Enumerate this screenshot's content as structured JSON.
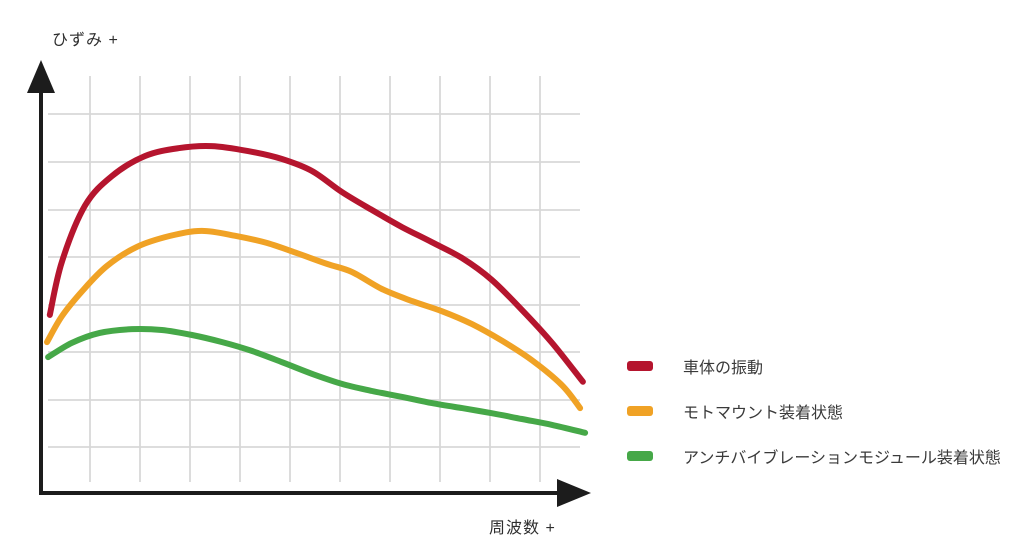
{
  "chart_data": {
    "type": "line",
    "title": "",
    "xlabel": "周波数 +",
    "ylabel": "ひずみ +",
    "grid": "on",
    "legend_position": "right",
    "axis_ticks": "none",
    "units_note": "axes are qualitative; point coordinates are percent of axis span (x = frequency 0-100, y = strain 0-100)",
    "colors": {
      "red": "#b5152e",
      "orange": "#f0a225",
      "green": "#46a848",
      "grid": "#d8d8d8",
      "axis": "#1c1c1c",
      "text": "#3a3a3a",
      "background": "#ffffff"
    },
    "series": [
      {
        "name": "車体の振動",
        "color": "#b5152e",
        "points": [
          [
            1.6,
            42.6
          ],
          [
            3.8,
            55.3
          ],
          [
            8.0,
            68.7
          ],
          [
            12.9,
            75.8
          ],
          [
            18.9,
            80.6
          ],
          [
            25.0,
            82.5
          ],
          [
            31.1,
            83.0
          ],
          [
            37.7,
            81.8
          ],
          [
            43.9,
            79.9
          ],
          [
            49.4,
            77.0
          ],
          [
            54.8,
            72.0
          ],
          [
            60.3,
            67.7
          ],
          [
            65.8,
            63.6
          ],
          [
            71.2,
            60.0
          ],
          [
            76.7,
            56.2
          ],
          [
            82.1,
            51.0
          ],
          [
            87.6,
            43.8
          ],
          [
            93.1,
            35.9
          ],
          [
            98.7,
            26.6
          ]
        ]
      },
      {
        "name": "モトマウント装着状態",
        "color": "#f0a225",
        "points": [
          [
            1.1,
            36.1
          ],
          [
            3.8,
            42.3
          ],
          [
            7.5,
            48.3
          ],
          [
            12.0,
            54.3
          ],
          [
            17.5,
            58.9
          ],
          [
            23.5,
            61.5
          ],
          [
            29.3,
            62.7
          ],
          [
            35.5,
            61.5
          ],
          [
            41.2,
            59.8
          ],
          [
            46.6,
            57.4
          ],
          [
            52.1,
            54.8
          ],
          [
            56.6,
            52.9
          ],
          [
            62.1,
            48.8
          ],
          [
            67.6,
            45.9
          ],
          [
            73.0,
            43.5
          ],
          [
            78.5,
            40.4
          ],
          [
            84.0,
            36.4
          ],
          [
            89.4,
            31.8
          ],
          [
            94.9,
            25.8
          ],
          [
            98.2,
            20.3
          ]
        ]
      },
      {
        "name": "アンチバイブレーションモジュール装着状態",
        "color": "#46a848",
        "points": [
          [
            1.3,
            32.5
          ],
          [
            5.6,
            35.9
          ],
          [
            10.7,
            38.3
          ],
          [
            16.6,
            39.2
          ],
          [
            22.0,
            39.0
          ],
          [
            27.5,
            37.8
          ],
          [
            33.0,
            36.1
          ],
          [
            38.4,
            34.0
          ],
          [
            43.9,
            31.3
          ],
          [
            49.4,
            28.5
          ],
          [
            54.8,
            26.1
          ],
          [
            60.3,
            24.4
          ],
          [
            65.8,
            23.0
          ],
          [
            71.2,
            21.5
          ],
          [
            76.7,
            20.3
          ],
          [
            82.1,
            19.1
          ],
          [
            87.6,
            17.7
          ],
          [
            93.1,
            16.3
          ],
          [
            99.1,
            14.4
          ]
        ]
      }
    ]
  }
}
